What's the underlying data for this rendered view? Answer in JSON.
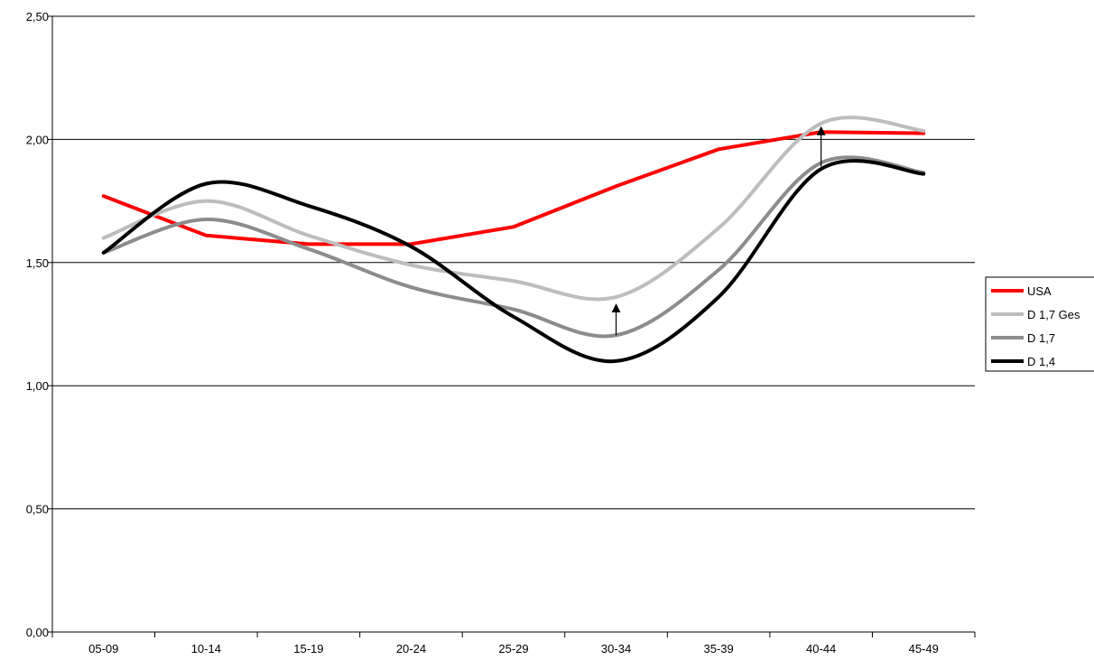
{
  "chart_data": {
    "type": "line",
    "title": "",
    "xlabel": "",
    "ylabel": "",
    "categories": [
      "05-09",
      "10-14",
      "15-19",
      "20-24",
      "25-29",
      "30-34",
      "35-39",
      "40-44",
      "45-49"
    ],
    "ylim": [
      0,
      2.5
    ],
    "yticks": [
      "0,00",
      "0,50",
      "1,00",
      "1,50",
      "2,00",
      "2,50"
    ],
    "grid": "horizontal",
    "legend_position": "right",
    "series": [
      {
        "name": "USA",
        "color": "#ff0000",
        "smooth": false,
        "values": [
          1.77,
          1.61,
          1.575,
          1.575,
          1.645,
          1.81,
          1.96,
          2.03,
          2.025
        ]
      },
      {
        "name": "D 1,7 Ges",
        "color": "#bdbdbd",
        "smooth": true,
        "values": [
          1.6,
          1.75,
          1.61,
          1.49,
          1.425,
          1.36,
          1.64,
          2.065,
          2.035
        ]
      },
      {
        "name": "D 1,7",
        "color": "#8c8c8c",
        "smooth": true,
        "values": [
          1.54,
          1.675,
          1.555,
          1.4,
          1.31,
          1.205,
          1.47,
          1.905,
          1.865
        ]
      },
      {
        "name": "D 1,4",
        "color": "#000000",
        "smooth": true,
        "values": [
          1.54,
          1.82,
          1.73,
          1.565,
          1.28,
          1.1,
          1.36,
          1.88,
          1.86
        ]
      }
    ],
    "annotations": [
      {
        "type": "arrow",
        "category": "30-34",
        "from": 1.205,
        "to": 1.33
      },
      {
        "type": "arrow",
        "category": "40-44",
        "from": 1.89,
        "to": 2.05
      }
    ]
  }
}
